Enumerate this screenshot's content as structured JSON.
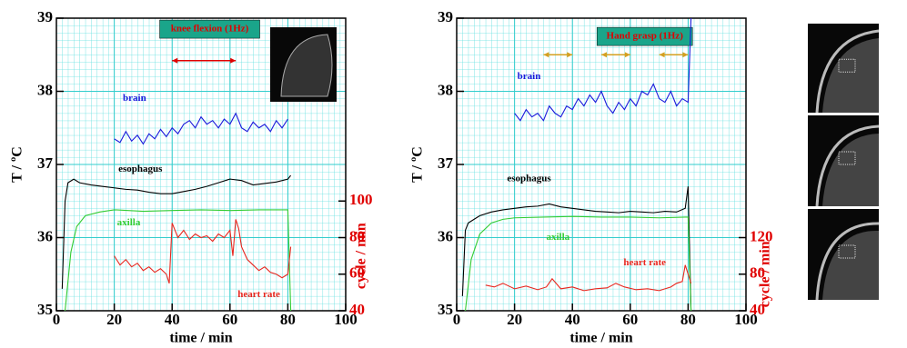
{
  "chart_data": [
    {
      "type": "line",
      "xlabel": "time / min",
      "ylabel": "T / ºC",
      "y2label": "cycle / min",
      "y2color": "#e00000",
      "annotation": "knee flexion (1Hz)",
      "stimulus_spans": [
        [
          40,
          62
        ]
      ],
      "grid": true,
      "xlim": [
        0,
        100
      ],
      "xticks": [
        0,
        20,
        40,
        60,
        80,
        100
      ],
      "ylim": [
        35,
        39
      ],
      "yticks": [
        35,
        36,
        37,
        38,
        39
      ],
      "y2lim": [
        40,
        200
      ],
      "y2ticks": [
        40,
        60,
        80,
        100
      ],
      "series": [
        {
          "name": "brain",
          "color": "#1a1adb",
          "x": [
            20,
            22,
            24,
            26,
            28,
            30,
            32,
            34,
            36,
            38,
            40,
            42,
            44,
            46,
            48,
            50,
            52,
            54,
            56,
            58,
            60,
            62,
            64,
            66,
            68,
            70,
            72,
            74,
            76,
            78,
            80
          ],
          "values": [
            37.35,
            37.3,
            37.45,
            37.32,
            37.4,
            37.28,
            37.42,
            37.35,
            37.48,
            37.38,
            37.5,
            37.42,
            37.55,
            37.6,
            37.5,
            37.65,
            37.55,
            37.6,
            37.5,
            37.62,
            37.55,
            37.7,
            37.5,
            37.45,
            37.58,
            37.5,
            37.55,
            37.45,
            37.6,
            37.5,
            37.62
          ]
        },
        {
          "name": "esophagus",
          "color": "#000000",
          "x": [
            2,
            3,
            4,
            6,
            8,
            12,
            16,
            20,
            24,
            28,
            32,
            36,
            40,
            44,
            48,
            52,
            56,
            60,
            64,
            68,
            72,
            76,
            80,
            81
          ],
          "values": [
            35.3,
            36.5,
            36.75,
            36.8,
            36.75,
            36.72,
            36.7,
            36.68,
            36.66,
            36.65,
            36.62,
            36.6,
            36.6,
            36.63,
            36.66,
            36.7,
            36.75,
            36.8,
            36.78,
            36.72,
            36.74,
            36.76,
            36.8,
            36.85
          ]
        },
        {
          "name": "axilla",
          "color": "#33cc33",
          "x": [
            3,
            5,
            7,
            10,
            15,
            20,
            30,
            40,
            50,
            60,
            70,
            80,
            81
          ],
          "values": [
            35,
            35.8,
            36.15,
            36.3,
            36.35,
            36.38,
            36.36,
            36.37,
            36.38,
            36.37,
            36.38,
            36.38,
            35
          ]
        },
        {
          "name": "heart rate",
          "color": "#e8261e",
          "axis": "y2",
          "x": [
            20,
            22,
            24,
            26,
            28,
            30,
            32,
            34,
            36,
            38,
            39,
            40,
            42,
            44,
            46,
            48,
            50,
            52,
            54,
            56,
            58,
            60,
            61,
            62,
            63,
            64,
            66,
            68,
            70,
            72,
            74,
            76,
            78,
            80,
            81
          ],
          "values": [
            70,
            65,
            68,
            64,
            66,
            62,
            64,
            61,
            63,
            60,
            55,
            88,
            80,
            84,
            79,
            82,
            80,
            81,
            78,
            82,
            80,
            84,
            70,
            90,
            85,
            75,
            68,
            65,
            62,
            64,
            61,
            60,
            58,
            60,
            75
          ]
        }
      ]
    },
    {
      "type": "line",
      "xlabel": "time / min",
      "ylabel": "T / ºC",
      "y2label": "cycle / min",
      "y2color": "#e00000",
      "annotation": "Hand grasp (1Hz)",
      "stimulus_spans": [
        [
          30,
          40
        ],
        [
          50,
          60
        ],
        [
          70,
          80
        ]
      ],
      "grid": true,
      "xlim": [
        0,
        100
      ],
      "xticks": [
        0,
        20,
        40,
        60,
        80,
        100
      ],
      "ylim": [
        35,
        39
      ],
      "yticks": [
        35,
        36,
        37,
        38,
        39
      ],
      "y2lim": [
        40,
        360
      ],
      "y2ticks": [
        40,
        80,
        120
      ],
      "series": [
        {
          "name": "brain",
          "color": "#1a1adb",
          "x": [
            20,
            22,
            24,
            26,
            28,
            30,
            32,
            34,
            36,
            38,
            40,
            42,
            44,
            46,
            48,
            50,
            52,
            54,
            56,
            58,
            60,
            62,
            64,
            66,
            68,
            70,
            72,
            74,
            76,
            78,
            80,
            81
          ],
          "values": [
            37.7,
            37.6,
            37.75,
            37.65,
            37.7,
            37.6,
            37.8,
            37.7,
            37.65,
            37.8,
            37.75,
            37.9,
            37.8,
            37.95,
            37.85,
            38.0,
            37.8,
            37.7,
            37.85,
            37.75,
            37.9,
            37.8,
            38.0,
            37.95,
            38.1,
            37.9,
            37.85,
            38.0,
            37.8,
            37.9,
            37.85,
            39
          ]
        },
        {
          "name": "esophagus",
          "color": "#000000",
          "x": [
            2,
            3,
            4,
            6,
            8,
            12,
            16,
            20,
            24,
            28,
            32,
            36,
            40,
            44,
            48,
            52,
            56,
            60,
            64,
            68,
            72,
            76,
            79,
            80,
            81
          ],
          "values": [
            35.2,
            36.1,
            36.2,
            36.25,
            36.3,
            36.35,
            36.38,
            36.4,
            36.42,
            36.43,
            36.46,
            36.42,
            36.4,
            36.38,
            36.36,
            36.35,
            36.34,
            36.36,
            36.35,
            36.34,
            36.36,
            36.35,
            36.4,
            36.7,
            35
          ]
        },
        {
          "name": "axilla",
          "color": "#33cc33",
          "x": [
            3,
            5,
            8,
            12,
            16,
            20,
            30,
            40,
            50,
            60,
            70,
            79,
            80,
            81
          ],
          "values": [
            35,
            35.7,
            36.05,
            36.2,
            36.25,
            36.27,
            36.28,
            36.29,
            36.28,
            36.28,
            36.27,
            36.28,
            36.28,
            35
          ]
        },
        {
          "name": "heart rate",
          "color": "#e8261e",
          "axis": "y2",
          "x": [
            10,
            13,
            16,
            20,
            24,
            28,
            31,
            33,
            36,
            40,
            44,
            48,
            52,
            55,
            58,
            62,
            66,
            70,
            74,
            76,
            78,
            79,
            80,
            81
          ],
          "values": [
            68,
            66,
            70,
            64,
            67,
            63,
            66,
            75,
            64,
            66,
            62,
            64,
            65,
            70,
            66,
            63,
            64,
            62,
            66,
            70,
            72,
            90,
            80,
            70
          ]
        }
      ]
    }
  ]
}
